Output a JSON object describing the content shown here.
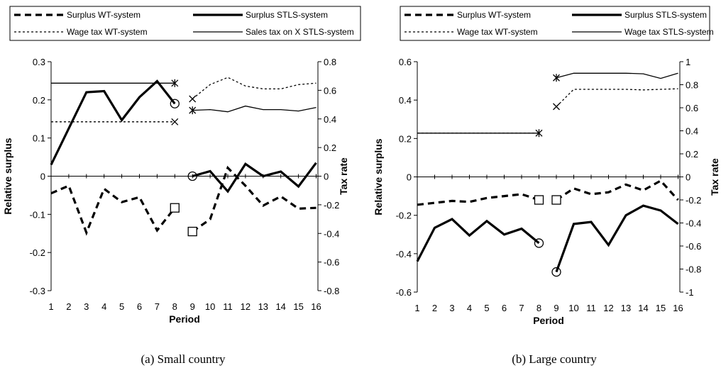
{
  "chart_data": [
    {
      "type": "line",
      "caption": "(a) Small country",
      "xlabel": "Period",
      "ylabel": "Relative surplus",
      "y2label": "Tax rate",
      "x": [
        1,
        2,
        3,
        4,
        5,
        6,
        7,
        8,
        9,
        10,
        11,
        12,
        13,
        14,
        15,
        16
      ],
      "xticks": [
        "1",
        "2",
        "3",
        "4",
        "5",
        "6",
        "7",
        "8",
        "9",
        "10",
        "11",
        "12",
        "13",
        "14",
        "15",
        "16"
      ],
      "ylim": [
        -0.3,
        0.3
      ],
      "yticks": [
        "0.3",
        "0.2",
        "0.1",
        "0",
        "-0.1",
        "-0.2",
        "-0.3"
      ],
      "y2lim": [
        -0.8,
        0.8
      ],
      "y2ticks": [
        "0.8",
        "0.6",
        "0.4",
        "0.2",
        "0",
        "-0.2",
        "-0.4",
        "-0.6",
        "-0.8"
      ],
      "legend": [
        "Surplus WT-system",
        "Surplus STLS-system",
        "Wage tax WT-system",
        "Sales tax on X STLS-system"
      ],
      "series": [
        {
          "name": "Surplus WT-system",
          "axis": "left",
          "style": "dashed-thick",
          "segments": [
            [
              [
                1,
                -0.045
              ],
              [
                2,
                -0.025
              ],
              [
                3,
                -0.148
              ],
              [
                4,
                -0.033
              ],
              [
                5,
                -0.068
              ],
              [
                6,
                -0.055
              ],
              [
                7,
                -0.142
              ],
              [
                8,
                -0.083
              ]
            ],
            [
              [
                9,
                -0.145
              ],
              [
                10,
                -0.113
              ],
              [
                11,
                0.022
              ],
              [
                12,
                -0.025
              ],
              [
                13,
                -0.077
              ],
              [
                14,
                -0.053
              ],
              [
                15,
                -0.085
              ],
              [
                16,
                -0.083
              ]
            ]
          ]
        },
        {
          "name": "Surplus STLS-system",
          "axis": "left",
          "style": "solid-thick",
          "segments": [
            [
              [
                1,
                0.03
              ],
              [
                2,
                0.125
              ],
              [
                3,
                0.22
              ],
              [
                4,
                0.223
              ],
              [
                5,
                0.147
              ],
              [
                6,
                0.207
              ],
              [
                7,
                0.249
              ],
              [
                8,
                0.19
              ]
            ],
            [
              [
                9,
                0.0
              ],
              [
                10,
                0.013
              ],
              [
                11,
                -0.04
              ],
              [
                12,
                0.032
              ],
              [
                13,
                0.0
              ],
              [
                14,
                0.012
              ],
              [
                15,
                -0.027
              ],
              [
                16,
                0.035
              ]
            ]
          ]
        },
        {
          "name": "Wage tax WT-system",
          "axis": "right",
          "style": "dotted",
          "segments": [
            [
              [
                1,
                0.38
              ],
              [
                2,
                0.38
              ],
              [
                3,
                0.38
              ],
              [
                4,
                0.38
              ],
              [
                5,
                0.38
              ],
              [
                6,
                0.38
              ],
              [
                7,
                0.38
              ],
              [
                8,
                0.38
              ]
            ],
            [
              [
                9,
                0.54
              ],
              [
                10,
                0.64
              ],
              [
                11,
                0.69
              ],
              [
                12,
                0.63
              ],
              [
                13,
                0.61
              ],
              [
                14,
                0.61
              ],
              [
                15,
                0.64
              ],
              [
                16,
                0.65
              ]
            ]
          ]
        },
        {
          "name": "Sales tax on X STLS-system",
          "axis": "right",
          "style": "solid-thin",
          "segments": [
            [
              [
                1,
                0.65
              ],
              [
                2,
                0.65
              ],
              [
                3,
                0.65
              ],
              [
                4,
                0.65
              ],
              [
                5,
                0.65
              ],
              [
                6,
                0.65
              ],
              [
                7,
                0.65
              ],
              [
                8,
                0.65
              ]
            ],
            [
              [
                9,
                0.46
              ],
              [
                10,
                0.465
              ],
              [
                11,
                0.45
              ],
              [
                12,
                0.49
              ],
              [
                13,
                0.465
              ],
              [
                14,
                0.465
              ],
              [
                15,
                0.455
              ],
              [
                16,
                0.48
              ]
            ]
          ]
        }
      ],
      "markers": [
        {
          "shape": "star",
          "axis": "right",
          "x": 8,
          "y": 0.65
        },
        {
          "shape": "x",
          "axis": "right",
          "x": 8,
          "y": 0.38
        },
        {
          "shape": "circle",
          "axis": "left",
          "x": 8,
          "y": 0.19
        },
        {
          "shape": "square",
          "axis": "left",
          "x": 8,
          "y": -0.083
        },
        {
          "shape": "x",
          "axis": "right",
          "x": 9,
          "y": 0.54
        },
        {
          "shape": "star",
          "axis": "right",
          "x": 9,
          "y": 0.46
        },
        {
          "shape": "circle",
          "axis": "left",
          "x": 9,
          "y": 0.0
        },
        {
          "shape": "square",
          "axis": "left",
          "x": 9,
          "y": -0.145
        }
      ]
    },
    {
      "type": "line",
      "caption": "(b) Large country",
      "xlabel": "Period",
      "ylabel": "Relative surplus",
      "y2label": "Tax rate",
      "x": [
        1,
        2,
        3,
        4,
        5,
        6,
        7,
        8,
        9,
        10,
        11,
        12,
        13,
        14,
        15,
        16
      ],
      "xticks": [
        "1",
        "2",
        "3",
        "4",
        "5",
        "6",
        "7",
        "8",
        "9",
        "10",
        "11",
        "12",
        "13",
        "14",
        "15",
        "16"
      ],
      "ylim": [
        -0.6,
        0.6
      ],
      "yticks": [
        "0.6",
        "0.4",
        "0.2",
        "0",
        "-0.2",
        "-0.4",
        "-0.6"
      ],
      "y2lim": [
        -1,
        1
      ],
      "y2ticks": [
        "1",
        "0.8",
        "0.6",
        "0.4",
        "0.2",
        "0",
        "-0.2",
        "-0.4",
        "-0.6",
        "-0.8",
        "-1"
      ],
      "legend": [
        "Surplus WT-system",
        "Surplus STLS-system",
        "Wage tax WT-system",
        "Wage tax STLS-system"
      ],
      "series": [
        {
          "name": "Surplus WT-system",
          "axis": "left",
          "style": "dashed-thick",
          "segments": [
            [
              [
                1,
                -0.145
              ],
              [
                2,
                -0.135
              ],
              [
                3,
                -0.125
              ],
              [
                4,
                -0.13
              ],
              [
                5,
                -0.11
              ],
              [
                6,
                -0.1
              ],
              [
                7,
                -0.09
              ],
              [
                8,
                -0.12
              ]
            ],
            [
              [
                9,
                -0.12
              ],
              [
                10,
                -0.06
              ],
              [
                11,
                -0.09
              ],
              [
                12,
                -0.08
              ],
              [
                13,
                -0.04
              ],
              [
                14,
                -0.07
              ],
              [
                15,
                -0.02
              ],
              [
                16,
                -0.12
              ]
            ]
          ]
        },
        {
          "name": "Surplus STLS-system",
          "axis": "left",
          "style": "solid-thick",
          "segments": [
            [
              [
                1,
                -0.44
              ],
              [
                2,
                -0.265
              ],
              [
                3,
                -0.22
              ],
              [
                4,
                -0.305
              ],
              [
                5,
                -0.23
              ],
              [
                6,
                -0.3
              ],
              [
                7,
                -0.27
              ],
              [
                8,
                -0.345
              ]
            ],
            [
              [
                9,
                -0.495
              ],
              [
                10,
                -0.245
              ],
              [
                11,
                -0.235
              ],
              [
                12,
                -0.355
              ],
              [
                13,
                -0.2
              ],
              [
                14,
                -0.15
              ],
              [
                15,
                -0.175
              ],
              [
                16,
                -0.245
              ]
            ]
          ]
        },
        {
          "name": "Wage tax WT-system",
          "axis": "right",
          "style": "dotted",
          "segments": [
            [
              [
                1,
                0.38
              ],
              [
                2,
                0.38
              ],
              [
                3,
                0.38
              ],
              [
                4,
                0.38
              ],
              [
                5,
                0.38
              ],
              [
                6,
                0.38
              ],
              [
                7,
                0.38
              ],
              [
                8,
                0.38
              ]
            ],
            [
              [
                9,
                0.61
              ],
              [
                10,
                0.76
              ],
              [
                11,
                0.76
              ],
              [
                12,
                0.76
              ],
              [
                13,
                0.76
              ],
              [
                14,
                0.755
              ],
              [
                15,
                0.76
              ],
              [
                16,
                0.765
              ]
            ]
          ]
        },
        {
          "name": "Wage tax STLS-system",
          "axis": "right",
          "style": "solid-thin",
          "segments": [
            [
              [
                1,
                0.38
              ],
              [
                2,
                0.38
              ],
              [
                3,
                0.38
              ],
              [
                4,
                0.38
              ],
              [
                5,
                0.38
              ],
              [
                6,
                0.38
              ],
              [
                7,
                0.38
              ],
              [
                8,
                0.38
              ]
            ],
            [
              [
                9,
                0.86
              ],
              [
                10,
                0.9
              ],
              [
                11,
                0.9
              ],
              [
                12,
                0.9
              ],
              [
                13,
                0.9
              ],
              [
                14,
                0.895
              ],
              [
                15,
                0.855
              ],
              [
                16,
                0.9
              ]
            ]
          ]
        }
      ],
      "markers": [
        {
          "shape": "star",
          "axis": "right",
          "x": 8,
          "y": 0.38
        },
        {
          "shape": "circle",
          "axis": "left",
          "x": 8,
          "y": -0.345
        },
        {
          "shape": "square",
          "axis": "left",
          "x": 8,
          "y": -0.12
        },
        {
          "shape": "star",
          "axis": "right",
          "x": 9,
          "y": 0.86
        },
        {
          "shape": "x",
          "axis": "right",
          "x": 9,
          "y": 0.61
        },
        {
          "shape": "square",
          "axis": "left",
          "x": 9,
          "y": -0.12
        },
        {
          "shape": "circle",
          "axis": "left",
          "x": 9,
          "y": -0.495
        }
      ]
    }
  ]
}
